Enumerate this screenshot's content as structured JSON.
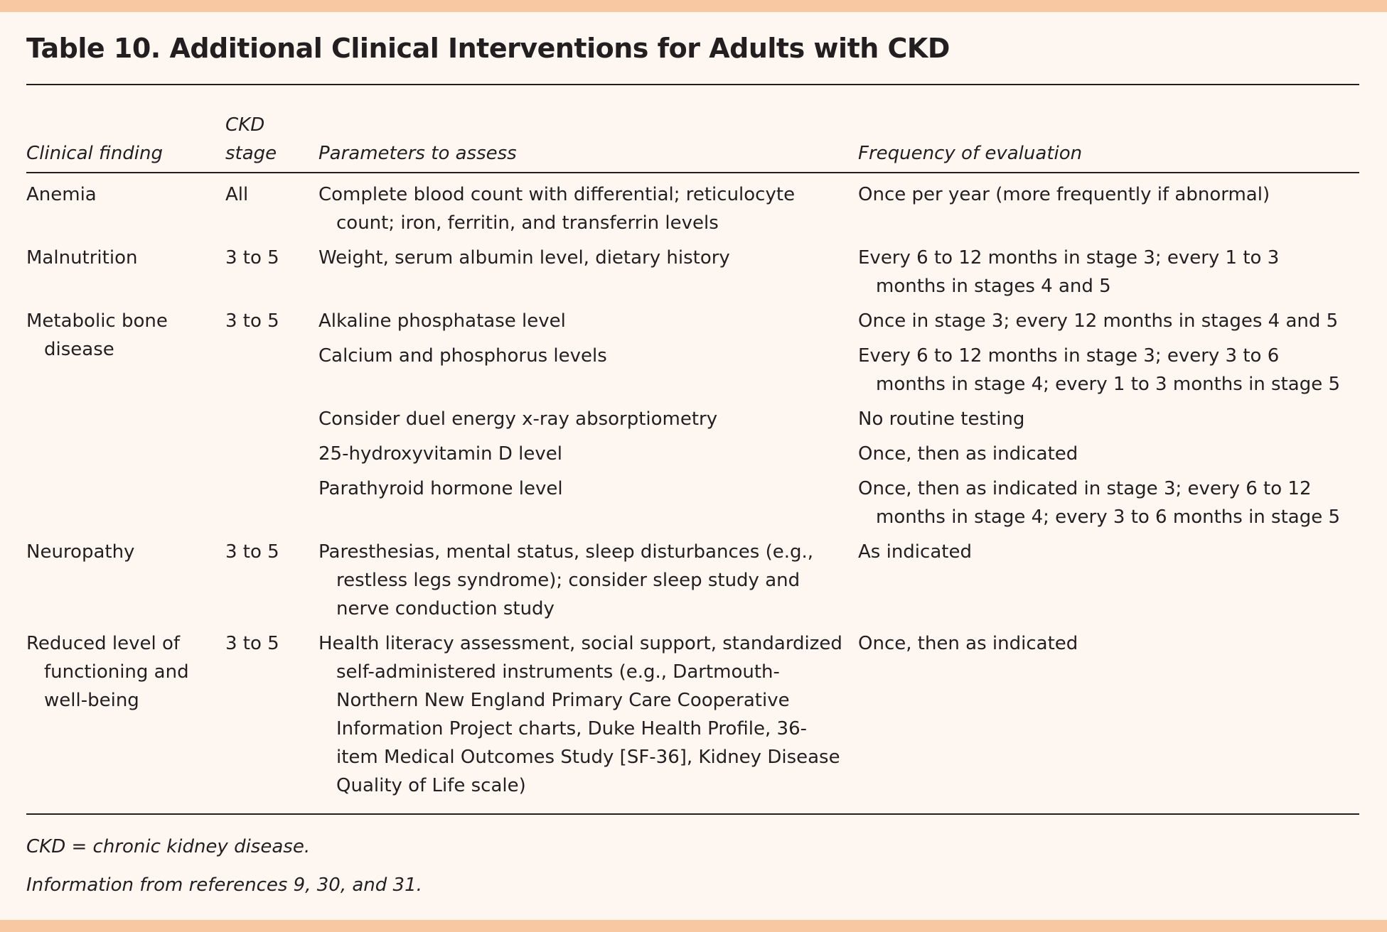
{
  "title": "Table 10. Additional Clinical Interventions for Adults with CKD",
  "table": {
    "columns": [
      "Clinical finding",
      "CKD stage",
      "Parameters to assess",
      "Frequency of evaluation"
    ],
    "rows": [
      {
        "finding": "Anemia",
        "stage": "All",
        "items": [
          {
            "parameter": "Complete blood count with differential; reticulocyte count; iron, ferritin, and transferrin levels",
            "frequency": "Once per year (more frequently if abnormal)"
          }
        ]
      },
      {
        "finding": "Malnutrition",
        "stage": "3 to 5",
        "items": [
          {
            "parameter": "Weight, serum albumin level, dietary history",
            "frequency": "Every 6 to 12 months in stage 3; every 1 to 3 months in stages 4 and 5"
          }
        ]
      },
      {
        "finding": "Metabolic bone disease",
        "stage": "3 to 5",
        "items": [
          {
            "parameter": "Alkaline phosphatase level",
            "frequency": "Once in stage 3; every 12 months in stages 4 and 5"
          },
          {
            "parameter": "Calcium and phosphorus levels",
            "frequency": "Every 6 to 12 months in stage 3; every 3 to 6 months in stage 4; every 1 to 3 months in stage 5"
          },
          {
            "parameter": "Consider duel energy x-ray absorptiometry",
            "frequency": "No routine testing"
          },
          {
            "parameter": "25-hydroxyvitamin D level",
            "frequency": "Once, then as indicated"
          },
          {
            "parameter": "Parathyroid hormone level",
            "frequency": "Once, then as indicated in stage 3; every 6 to 12 months in stage 4; every 3 to 6 months in stage 5"
          }
        ]
      },
      {
        "finding": "Neuropathy",
        "stage": "3 to 5",
        "items": [
          {
            "parameter": "Paresthesias, mental status, sleep disturbances (e.g., restless legs syndrome); consider sleep study and nerve conduction study",
            "frequency": "As indicated"
          }
        ]
      },
      {
        "finding": "Reduced level of functioning and well-being",
        "stage": "3 to 5",
        "items": [
          {
            "parameter": "Health literacy assessment, social support, standardized self-administered instruments (e.g., Dartmouth-Northern New England Primary Care Cooperative Information Project charts, Duke Health Profile, 36-item Medical Outcomes Study [SF-36], Kidney Disease Quality of Life scale)",
            "frequency": "Once, then as indicated"
          }
        ]
      }
    ]
  },
  "footnotes": [
    "CKD = chronic kidney disease.",
    "Information from references 9, 30, and 31."
  ]
}
